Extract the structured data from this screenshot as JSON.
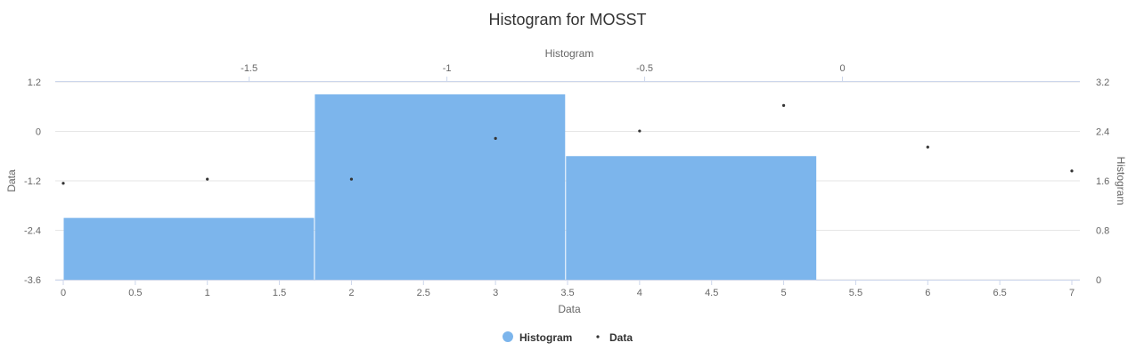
{
  "chart_data": {
    "type": "bar",
    "title": "Histogram for MOSST",
    "series": [
      {
        "name": "Histogram",
        "kind": "histogram",
        "color": "#7cb5ec",
        "bins": [
          {
            "x_start": -1.97,
            "x_end": -1.335,
            "count": 1
          },
          {
            "x_start": -1.335,
            "x_end": -0.7,
            "count": 3
          },
          {
            "x_start": -0.7,
            "x_end": -0.065,
            "count": 2
          }
        ]
      },
      {
        "name": "Data",
        "kind": "scatter",
        "color": "#333333",
        "points": [
          {
            "x": 0,
            "y": -1.26
          },
          {
            "x": 1,
            "y": -1.16
          },
          {
            "x": 2,
            "y": -1.16
          },
          {
            "x": 3,
            "y": -0.17
          },
          {
            "x": 4,
            "y": 0.01
          },
          {
            "x": 5,
            "y": 0.63
          },
          {
            "x": 6,
            "y": -0.38
          },
          {
            "x": 7,
            "y": -0.96
          }
        ]
      }
    ],
    "axes": {
      "x_bottom": {
        "title": "Data",
        "min": 0,
        "max": 7,
        "ticks": [
          "0",
          "0.5",
          "1",
          "1.5",
          "2",
          "2.5",
          "3",
          "3.5",
          "4",
          "4.5",
          "5",
          "5.5",
          "6",
          "6.5",
          "7"
        ]
      },
      "x_top": {
        "title": "Histogram",
        "min": -1.97,
        "max": 0.58,
        "ticks": [
          "-1.5",
          "-1",
          "-0.5",
          "0"
        ]
      },
      "y_left": {
        "title": "Data",
        "min": -3.6,
        "max": 1.2,
        "ticks": [
          "-3.6",
          "-2.4",
          "-1.2",
          "0",
          "1.2"
        ]
      },
      "y_right": {
        "title": "Histogram",
        "min": 0,
        "max": 3.2,
        "ticks": [
          "0",
          "0.8",
          "1.6",
          "2.4",
          "3.2"
        ]
      }
    },
    "grid": true,
    "legend": {
      "position": "bottom-center",
      "items": [
        "Histogram",
        "Data"
      ]
    }
  }
}
